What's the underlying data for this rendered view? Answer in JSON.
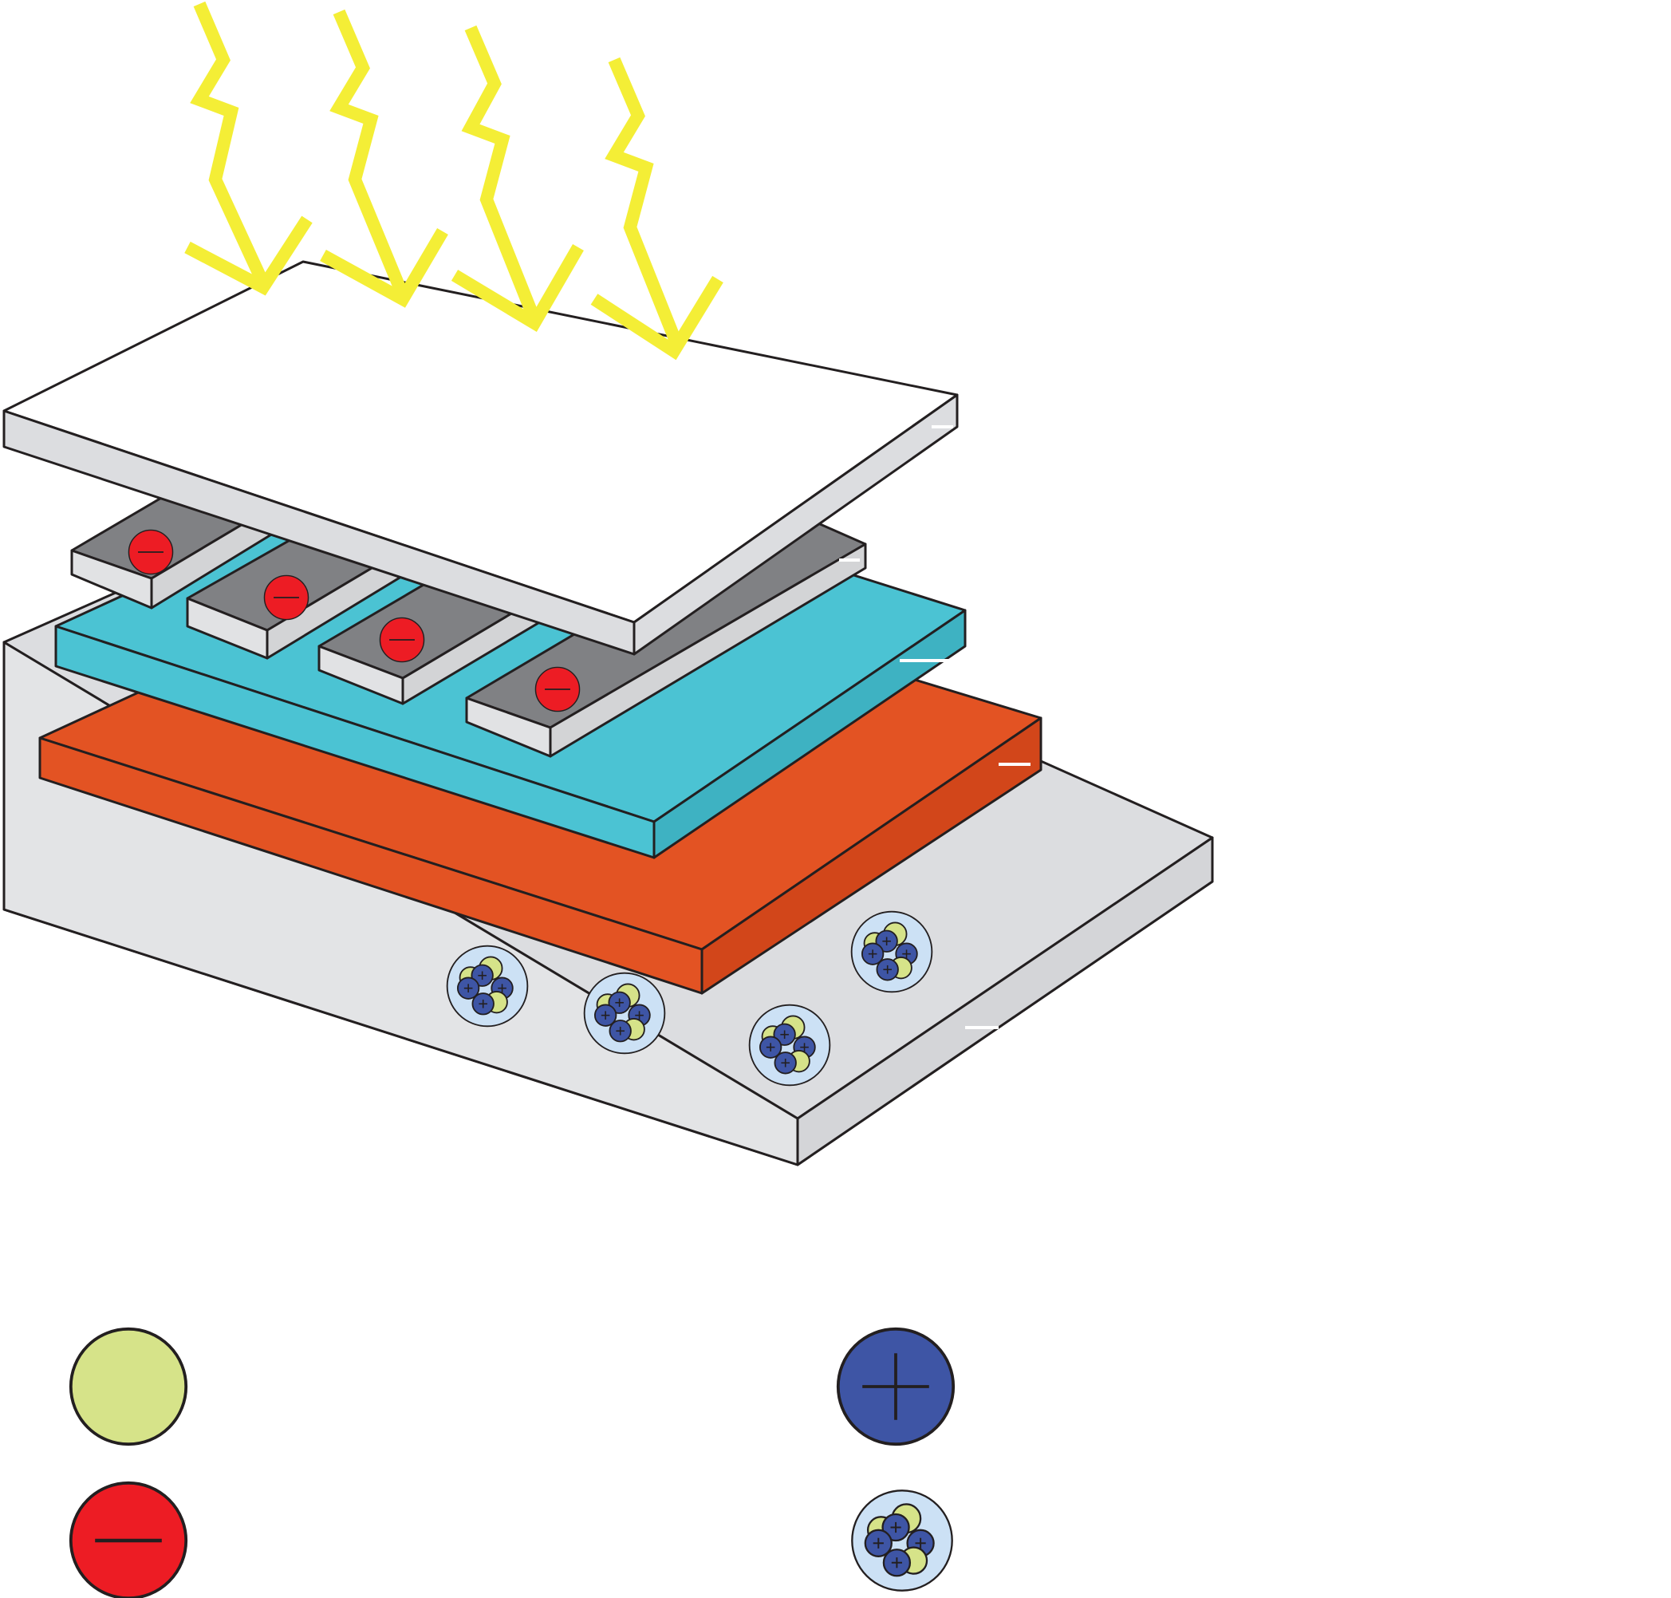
{
  "diagram": {
    "title": "",
    "colors": {
      "background": "#ffffff",
      "light_ray": "#f4ee36",
      "top_glass": "#eeeeee",
      "top_glass_side": "#dcdde0",
      "electrode": "#808184",
      "electrode_side": "#e1e2e4",
      "absorber_layer": "#4bc3d3",
      "absorber_side": "#3eb2c2",
      "red_layer": "#e35323",
      "red_layer_side": "#d2461a",
      "substrate": "#dcdde0",
      "substrate_side": "#e3e4e6",
      "electron": "#ed1c24",
      "neutral_particle": "#d6e389",
      "proton": "#3e55a5",
      "nucleus_shell": "#cce1f5"
    },
    "light_rays": {
      "count": 4
    },
    "electron_count_in_diagram": 4,
    "nucleus_count_in_diagram": 4,
    "layer_labels": []
  },
  "legend": {
    "items": [
      {
        "key": "neutral-particle",
        "label": ""
      },
      {
        "key": "proton",
        "label": ""
      },
      {
        "key": "electron",
        "label": ""
      },
      {
        "key": "nucleus",
        "label": ""
      }
    ]
  }
}
